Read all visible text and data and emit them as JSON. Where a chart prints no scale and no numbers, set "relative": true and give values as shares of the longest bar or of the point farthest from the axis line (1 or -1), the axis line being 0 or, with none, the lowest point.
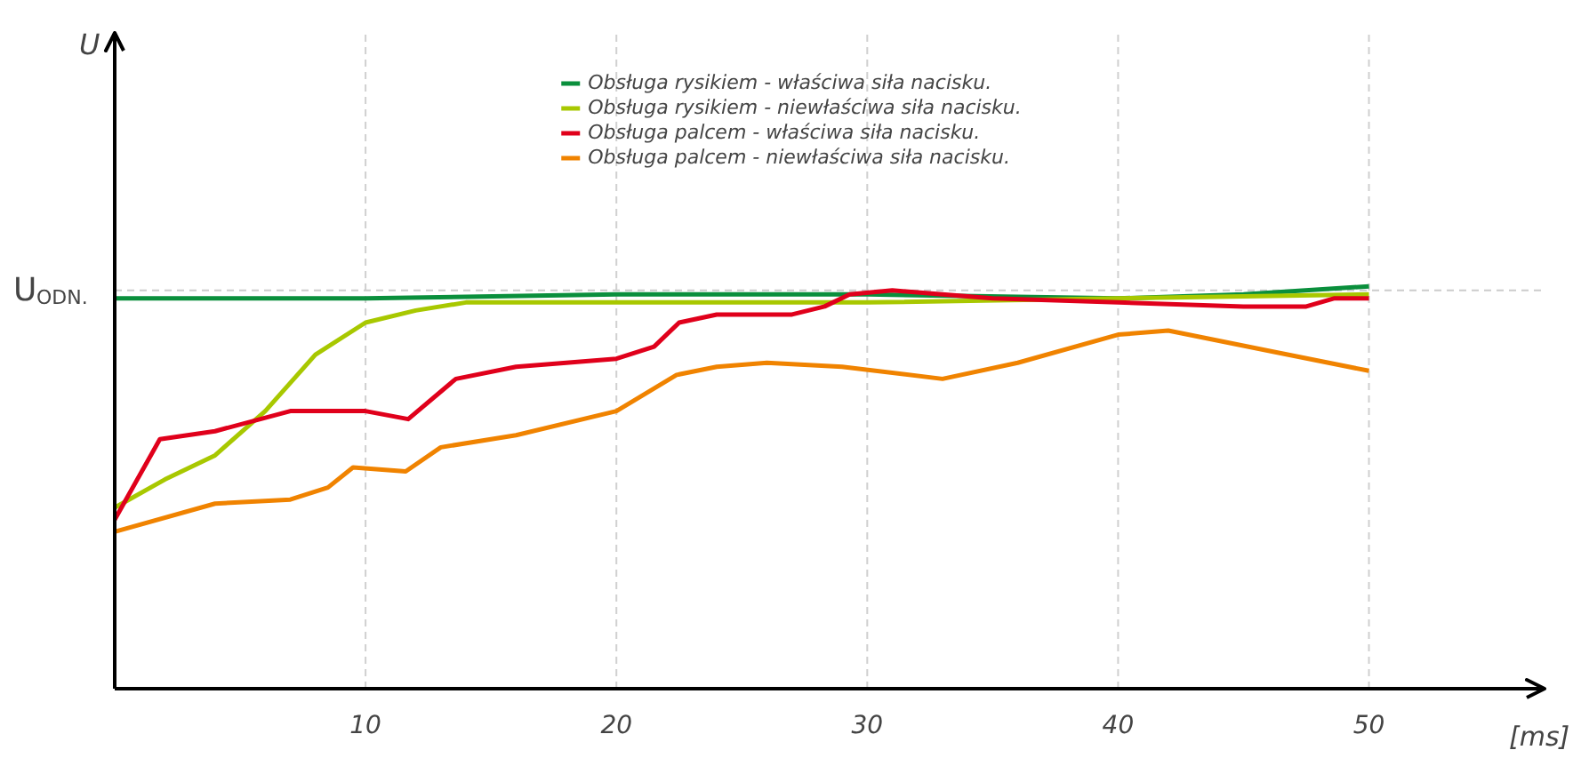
{
  "chart_data": {
    "type": "line",
    "relative": true,
    "xlabel": "[ms]",
    "annotations": [
      "U"
    ],
    "xlim": [
      0,
      57
    ],
    "xticks": [
      10,
      20,
      30,
      40,
      50
    ],
    "grid": "x",
    "legend": "top",
    "ref_lines": [
      {
        "axis": "y",
        "value": 0.99,
        "label": "U$_{ODN.}$",
        "line_style": "dashed",
        "color": "#cccccc"
      }
    ],
    "series": [
      {
        "name": "Obsługa rysikiem - właściwa siła nacisku.",
        "color": "#0a8f3c",
        "x": [
          0,
          10,
          20,
          30,
          40,
          45,
          50
        ],
        "values": [
          0.97,
          0.97,
          0.98,
          0.98,
          0.97,
          0.98,
          1.0
        ]
      },
      {
        "name": "Obsługa rysikiem - niewłaściwa siła nacisku.",
        "color": "#a8c800",
        "x": [
          0,
          2,
          4,
          6,
          8,
          10,
          12,
          14,
          20,
          30,
          50
        ],
        "values": [
          0.45,
          0.52,
          0.58,
          0.69,
          0.83,
          0.91,
          0.94,
          0.96,
          0.96,
          0.96,
          0.98
        ]
      },
      {
        "name": "Obsługa palcem - właściwa siła nacisku.",
        "color": "#e0001b",
        "x": [
          0,
          1.8,
          4,
          7,
          9,
          10,
          11.7,
          13.6,
          16,
          20,
          21.5,
          22.5,
          24,
          27,
          28.3,
          29.3,
          31,
          35,
          40,
          45,
          47.5,
          48.6,
          50
        ],
        "values": [
          0.42,
          0.62,
          0.64,
          0.69,
          0.69,
          0.69,
          0.67,
          0.77,
          0.8,
          0.82,
          0.85,
          0.91,
          0.93,
          0.93,
          0.95,
          0.98,
          0.99,
          0.97,
          0.96,
          0.95,
          0.95,
          0.97,
          0.97
        ]
      },
      {
        "name": "Obsługa palcem - niewłaściwa siła nacisku.",
        "color": "#f08300",
        "x": [
          0,
          4,
          7,
          8.5,
          9.5,
          11.6,
          13,
          16,
          20,
          22.4,
          24,
          26,
          29,
          33,
          36,
          40,
          42,
          46,
          50
        ],
        "values": [
          0.39,
          0.46,
          0.47,
          0.5,
          0.55,
          0.54,
          0.6,
          0.63,
          0.69,
          0.78,
          0.8,
          0.81,
          0.8,
          0.77,
          0.81,
          0.88,
          0.89,
          0.84,
          0.79
        ]
      }
    ]
  }
}
